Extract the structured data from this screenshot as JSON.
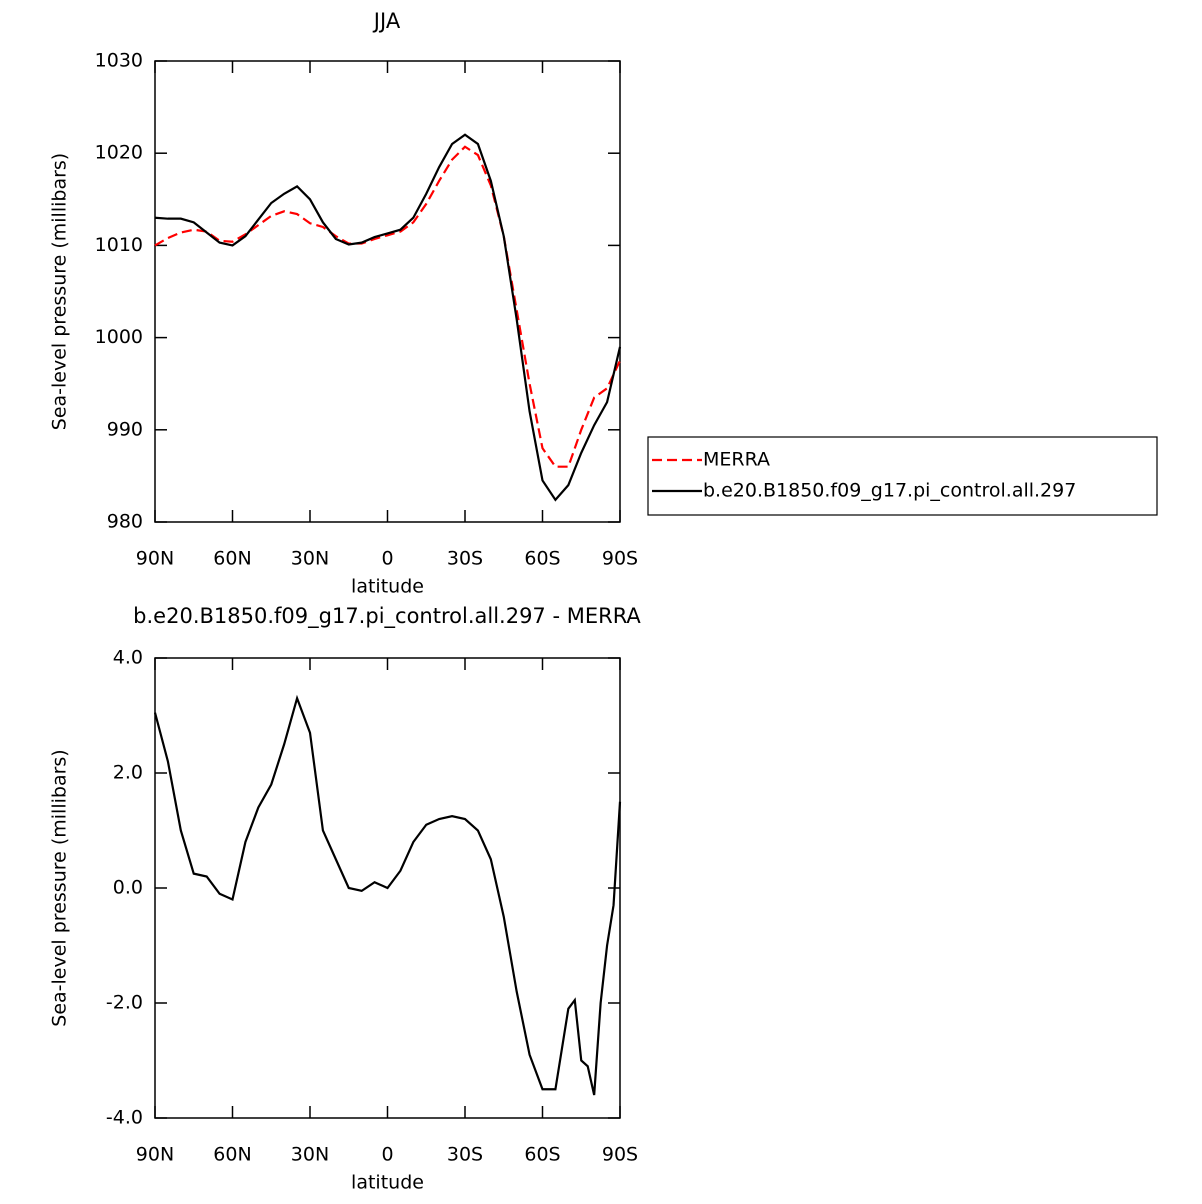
{
  "chart_data": [
    {
      "type": "line",
      "title": "JJA",
      "x_label": "latitude",
      "y_label": "Sea-level pressure (millibars)",
      "x": [
        90,
        85,
        80,
        75,
        70,
        65,
        60,
        55,
        50,
        45,
        40,
        35,
        30,
        25,
        20,
        15,
        10,
        5,
        0,
        -5,
        -10,
        -15,
        -20,
        -25,
        -30,
        -35,
        -40,
        -45,
        -50,
        -55,
        -60,
        -65,
        -70,
        -75,
        -80,
        -85,
        -90
      ],
      "series": [
        {
          "name": "MERRA",
          "color": "#ff0000",
          "dashed": true,
          "values": [
            1010.0,
            1010.8,
            1011.4,
            1011.7,
            1011.5,
            1010.5,
            1010.4,
            1011.2,
            1012.2,
            1013.2,
            1013.7,
            1013.4,
            1012.4,
            1012.0,
            1011.0,
            1010.2,
            1010.2,
            1010.7,
            1011.1,
            1011.5,
            1012.5,
            1014.5,
            1017.0,
            1019.3,
            1020.7,
            1019.8,
            1016.5,
            1011.0,
            1003.0,
            995.0,
            988.0,
            986.0,
            986.0,
            990.0,
            993.5,
            994.5,
            997.5
          ]
        },
        {
          "name": "b.e20.B1850.f09_g17.pi_control.all.297",
          "color": "#000000",
          "dashed": false,
          "values": [
            1013.0,
            1012.9,
            1012.9,
            1012.5,
            1011.4,
            1010.3,
            1010.0,
            1011.0,
            1012.8,
            1014.6,
            1015.6,
            1016.4,
            1015.0,
            1012.5,
            1010.7,
            1010.1,
            1010.3,
            1010.9,
            1011.3,
            1011.7,
            1013.0,
            1015.6,
            1018.5,
            1021.0,
            1022.0,
            1021.0,
            1017.0,
            1011.0,
            1002.0,
            992.0,
            984.5,
            982.4,
            984.0,
            987.5,
            990.5,
            993.0,
            999.0
          ]
        }
      ],
      "xlim": [
        90,
        -90
      ],
      "xticks": [
        {
          "value": 90,
          "label": "90N"
        },
        {
          "value": 60,
          "label": "60N"
        },
        {
          "value": 30,
          "label": "30N"
        },
        0,
        {
          "value": -30,
          "label": "30S"
        },
        {
          "value": -60,
          "label": "60S"
        },
        {
          "value": -90,
          "label": "90S"
        }
      ],
      "ylim": [
        980,
        1030
      ],
      "yticks": [
        980,
        990,
        1000,
        1010,
        1020,
        1030
      ],
      "legend": "right"
    },
    {
      "type": "line",
      "title": "b.e20.B1850.f09_g17.pi_control.all.297 - MERRA",
      "x_label": "latitude",
      "y_label": "Sea-level pressure (millibars)",
      "x": [
        90,
        85,
        80,
        75,
        70,
        65,
        60,
        55,
        50,
        45,
        40,
        35,
        30,
        25,
        20,
        15,
        10,
        5,
        0,
        -5,
        -10,
        -15,
        -20,
        -25,
        -30,
        -35,
        -40,
        -45,
        -50,
        -55,
        -60,
        -65,
        -70,
        -72.5,
        -75,
        -77.5,
        -80,
        -82.5,
        -85,
        -87.5,
        -90
      ],
      "series": [
        {
          "color": "#000000",
          "values": [
            3.05,
            2.2,
            1.0,
            0.25,
            0.2,
            -0.1,
            -0.2,
            0.8,
            1.4,
            1.8,
            2.5,
            3.3,
            2.7,
            1.0,
            0.5,
            0.0,
            -0.05,
            0.1,
            0.0,
            0.3,
            0.8,
            1.1,
            1.2,
            1.25,
            1.2,
            1.0,
            0.5,
            -0.5,
            -1.8,
            -2.9,
            -3.5,
            -3.5,
            -2.1,
            -1.95,
            -3.0,
            -3.1,
            -3.6,
            -2.0,
            -1.0,
            -0.3,
            1.5
          ]
        }
      ],
      "xlim": [
        90,
        -90
      ],
      "xticks": [
        {
          "value": 90,
          "label": "90N"
        },
        {
          "value": 60,
          "label": "60N"
        },
        {
          "value": 30,
          "label": "30N"
        },
        0,
        {
          "value": -30,
          "label": "30S"
        },
        {
          "value": -60,
          "label": "60S"
        },
        {
          "value": -90,
          "label": "90S"
        }
      ],
      "ylim": [
        -4,
        4
      ],
      "yticks": [
        {
          "value": -4,
          "label": "-4.0"
        },
        {
          "value": -2,
          "label": "-2.0"
        },
        {
          "value": 0,
          "label": "0.0"
        },
        {
          "value": 2,
          "label": "2.0"
        },
        {
          "value": 4,
          "label": "4.0"
        }
      ]
    }
  ]
}
